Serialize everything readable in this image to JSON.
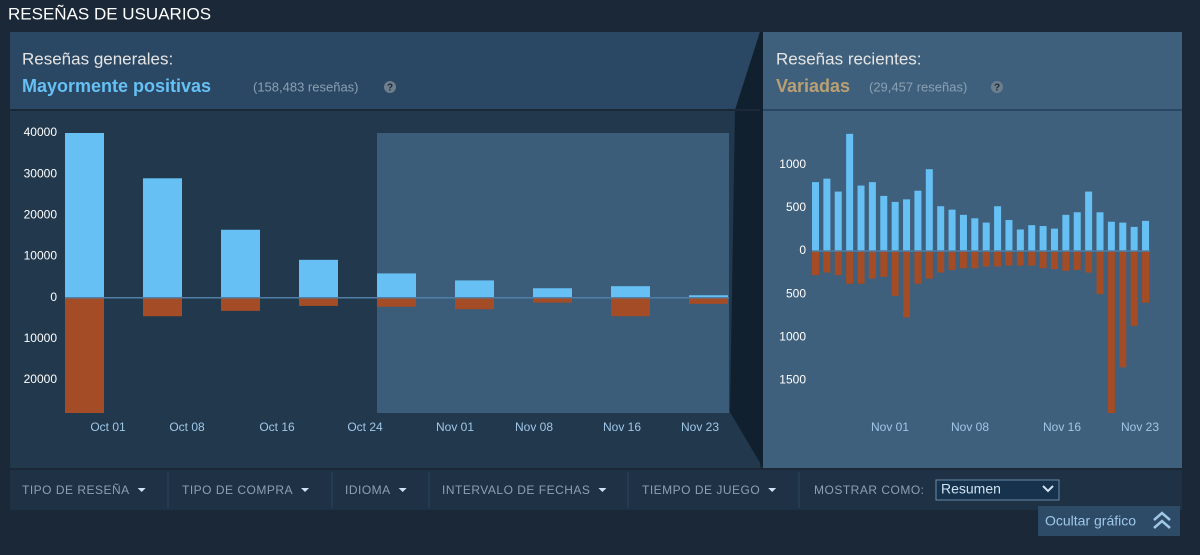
{
  "header": {
    "title": "RESEÑAS DE USUARIOS"
  },
  "overall": {
    "label": "Reseñas generales:",
    "rating": "Mayormente positivas",
    "count": "(158,483 reseñas)"
  },
  "recent": {
    "label": "Reseñas recientes:",
    "rating": "Variadas",
    "count": "(29,457 reseñas)"
  },
  "filters": [
    "TIPO DE RESEÑA",
    "TIPO DE COMPRA",
    "IDIOMA",
    "INTERVALO DE FECHAS",
    "TIEMPO DE JUEGO"
  ],
  "display": {
    "label": "MOSTRAR COMO:",
    "selected": "Resumen"
  },
  "hide_button": "Ocultar gráfico",
  "chart_data": [
    {
      "type": "bar",
      "ylim": [
        -28000,
        40000
      ],
      "yticks": [
        40000,
        30000,
        20000,
        10000,
        0,
        {
          "value": -10000,
          "label": "10000"
        },
        {
          "value": -20000,
          "label": "20000"
        }
      ],
      "xticks": [
        "Oct 01",
        "Oct 08",
        "Oct 16",
        "Oct 24",
        "Nov 01",
        "Nov 08",
        "Nov 16",
        "Nov 23"
      ],
      "series": [
        {
          "color": "#66c0f4",
          "values": [
            40000,
            29000,
            16500,
            9200,
            5900,
            4200,
            2300,
            2800,
            600
          ]
        },
        {
          "color": "#a34c25",
          "values": [
            -28000,
            -4500,
            -3200,
            -2000,
            -2200,
            -2800,
            -1200,
            -4500,
            -1500
          ]
        }
      ]
    },
    {
      "type": "bar",
      "ylim": [
        -1880,
        1370
      ],
      "yticks": [
        1000,
        500,
        0,
        {
          "value": -500,
          "label": "500"
        },
        {
          "value": -1000,
          "label": "1000"
        },
        {
          "value": -1500,
          "label": "1500"
        }
      ],
      "xticks": [
        "Nov 01",
        "Nov 08",
        "Nov 16",
        "Nov 23"
      ],
      "series": [
        {
          "color": "#66c0f4",
          "values": [
            800,
            840,
            690,
            1360,
            760,
            800,
            640,
            570,
            600,
            700,
            950,
            520,
            480,
            420,
            380,
            330,
            520,
            360,
            250,
            300,
            290,
            260,
            420,
            450,
            690,
            450,
            340,
            330,
            280,
            350
          ]
        },
        {
          "color": "#a34c25",
          "values": [
            -280,
            -250,
            -280,
            -380,
            -380,
            -320,
            -300,
            -520,
            -770,
            -380,
            -320,
            -250,
            -220,
            -200,
            -200,
            -180,
            -180,
            -170,
            -170,
            -170,
            -200,
            -210,
            -230,
            -220,
            -250,
            -500,
            -1880,
            -1350,
            -870,
            -600
          ]
        }
      ]
    }
  ]
}
